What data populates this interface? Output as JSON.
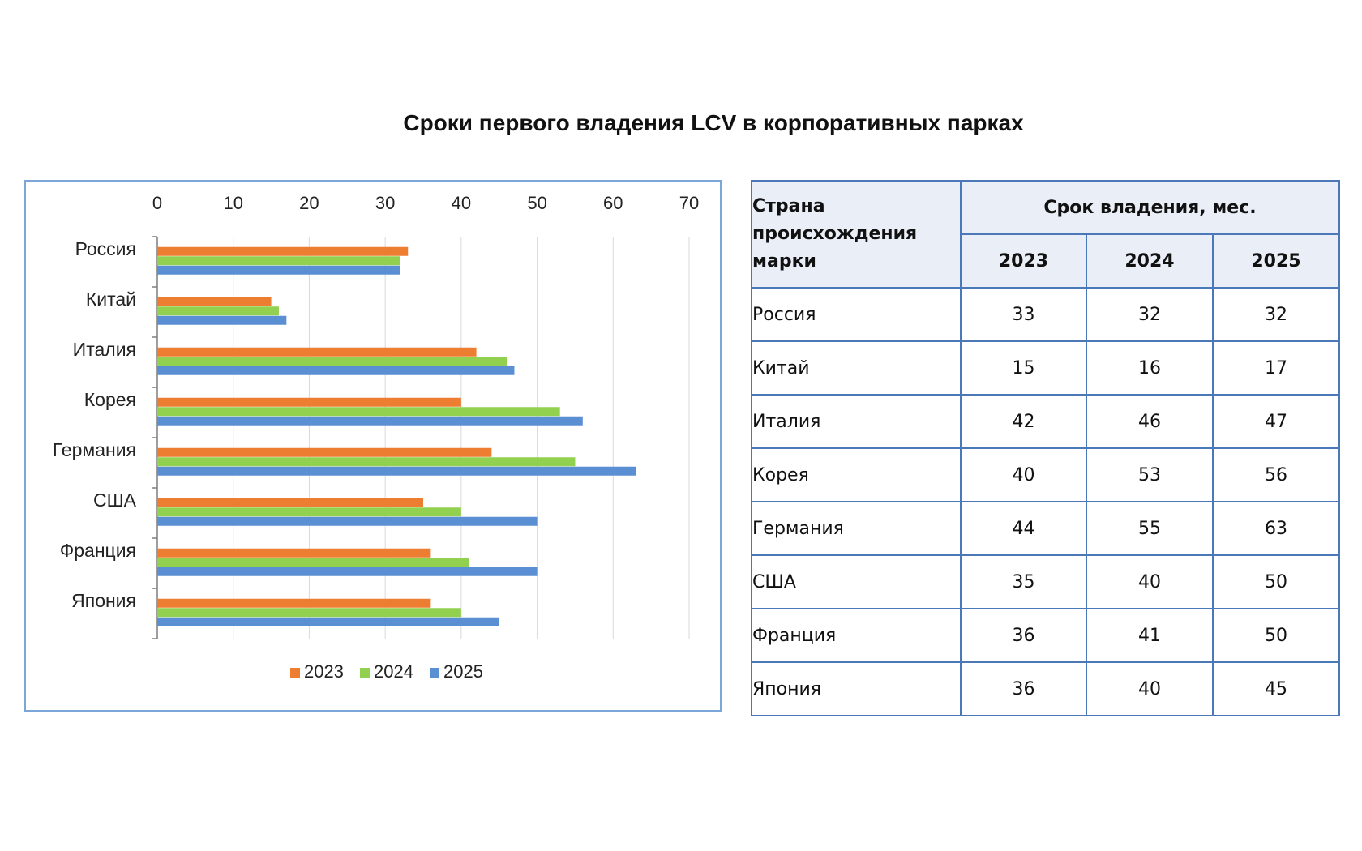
{
  "title": "Сроки первого владения LCV в корпоративных парках",
  "chart_data": {
    "type": "bar",
    "orientation": "horizontal",
    "categories": [
      "Россия",
      "Китай",
      "Италия",
      "Корея",
      "Германия",
      "США",
      "Франция",
      "Япония"
    ],
    "series": [
      {
        "name": "2023",
        "color": "#ed7d31",
        "values": [
          33,
          15,
          42,
          40,
          44,
          35,
          36,
          36
        ]
      },
      {
        "name": "2024",
        "color": "#92d050",
        "values": [
          32,
          16,
          46,
          53,
          55,
          40,
          41,
          40
        ]
      },
      {
        "name": "2025",
        "color": "#5b8fd4",
        "values": [
          32,
          17,
          47,
          56,
          63,
          50,
          50,
          45
        ]
      }
    ],
    "xlim": [
      0,
      70
    ],
    "xticks": [
      "0",
      "10",
      "20",
      "30",
      "40",
      "50",
      "60",
      "70"
    ],
    "x_axis_position": "top",
    "grid": true,
    "legend_position": "bottom"
  },
  "table": {
    "country_header": "Страна происхождения марки",
    "duration_header": "Срок владения,  мес.",
    "years": [
      "2023",
      "2024",
      "2025"
    ],
    "rows": [
      {
        "country": "Россия",
        "values": [
          "33",
          "32",
          "32"
        ]
      },
      {
        "country": "Китай",
        "values": [
          "15",
          "16",
          "17"
        ]
      },
      {
        "country": "Италия",
        "values": [
          "42",
          "46",
          "47"
        ]
      },
      {
        "country": "Корея",
        "values": [
          "40",
          "53",
          "56"
        ]
      },
      {
        "country": "Германия",
        "values": [
          "44",
          "55",
          "63"
        ]
      },
      {
        "country": "США",
        "values": [
          "35",
          "40",
          "50"
        ]
      },
      {
        "country": "Франция",
        "values": [
          "36",
          "41",
          "50"
        ]
      },
      {
        "country": "Япония",
        "values": [
          "36",
          "40",
          "45"
        ]
      }
    ]
  },
  "colors": {
    "chart_border": "#7aa6d8",
    "table_border": "#4a78b8",
    "table_header_bg": "#e9eef7"
  }
}
